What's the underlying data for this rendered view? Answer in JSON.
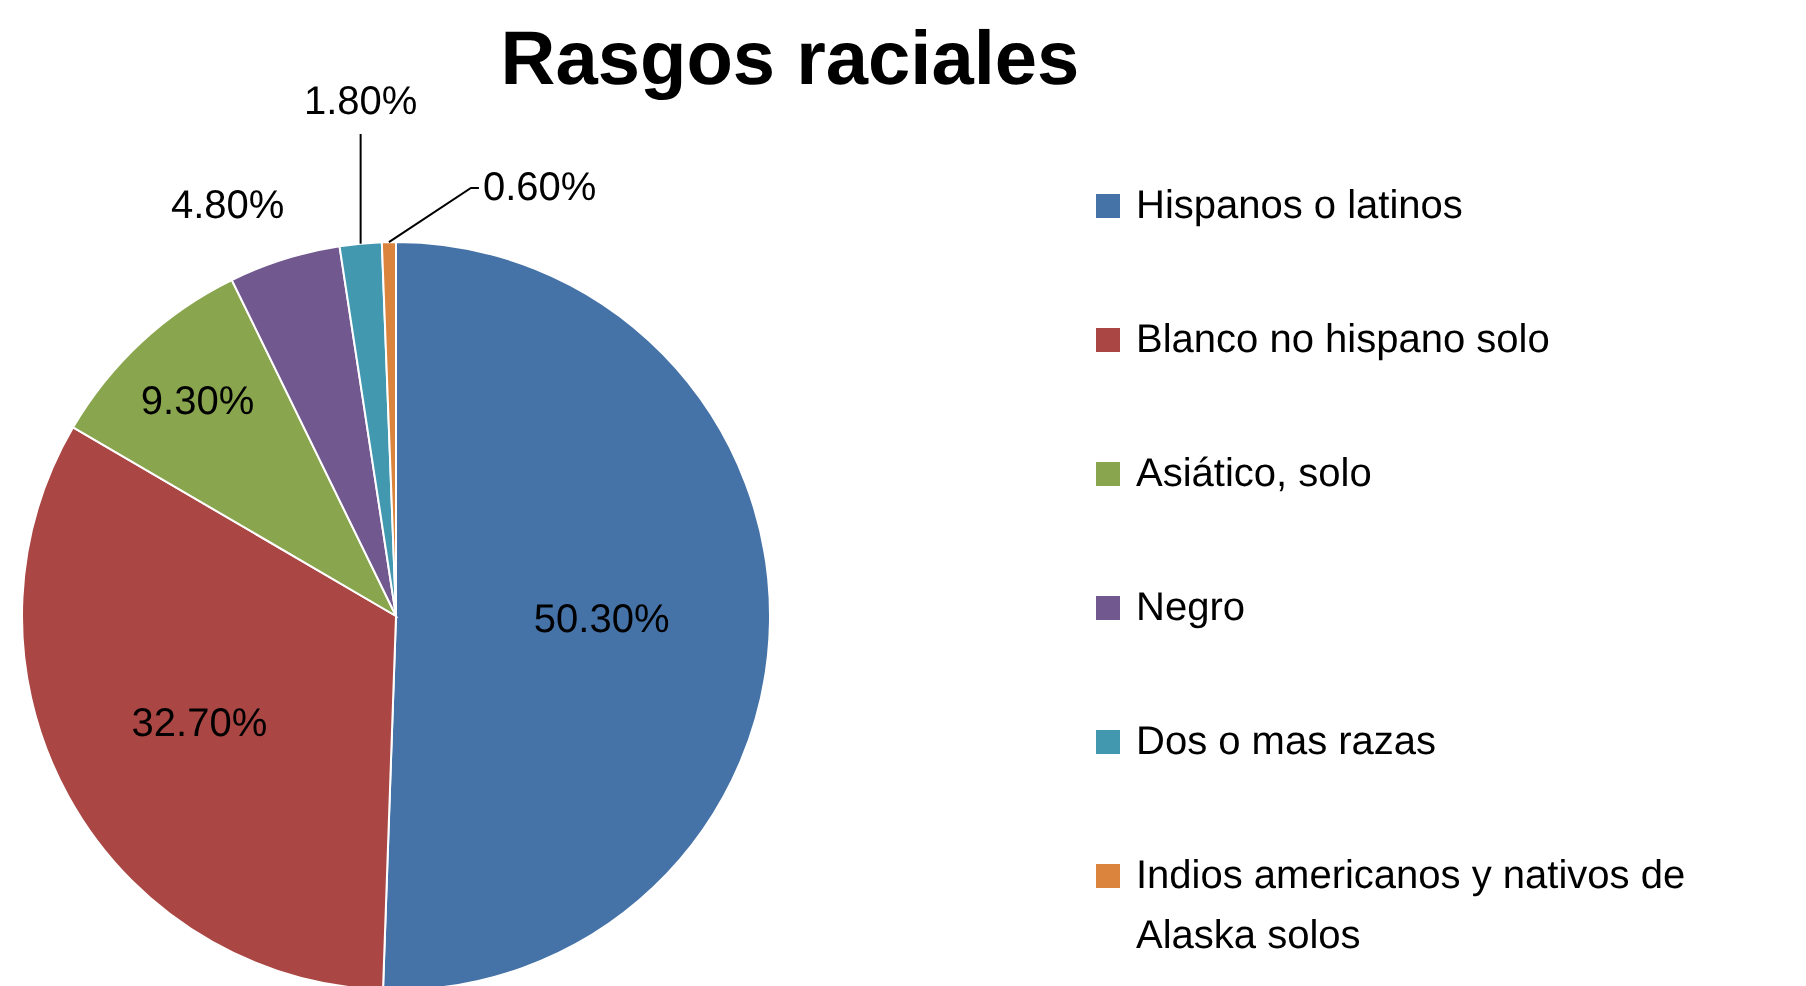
{
  "chart_data": {
    "type": "pie",
    "title": "Rasgos raciales",
    "categories": [
      "Hispanos o latinos",
      "Blanco no hispano solo",
      "Asiático, solo",
      "Negro",
      "Dos o mas razas",
      "Indios americanos y nativos de Alaska solos"
    ],
    "values": [
      50.3,
      32.7,
      9.3,
      4.8,
      1.8,
      0.6
    ],
    "value_labels": [
      "50.30%",
      "32.70%",
      "9.30%",
      "4.80%",
      "1.80%",
      "0.60%"
    ],
    "colors": [
      "#4572a7",
      "#aa4643",
      "#89a54e",
      "#71588f",
      "#4198af",
      "#db843d"
    ],
    "legend": "right"
  }
}
